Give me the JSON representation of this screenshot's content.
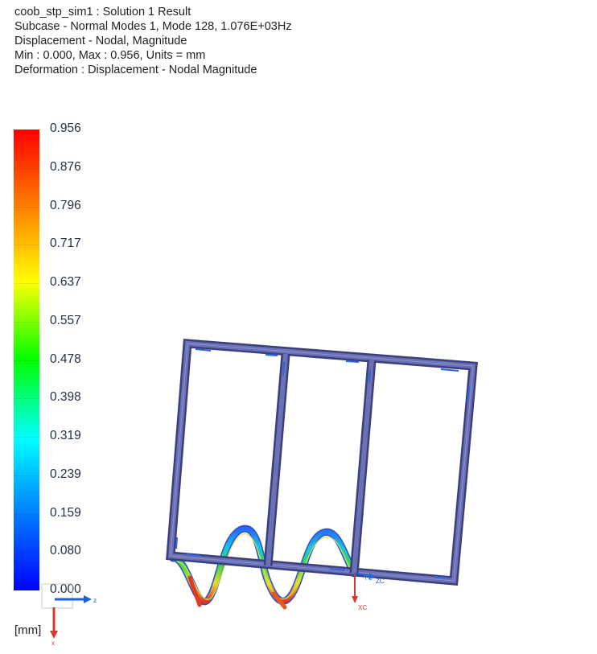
{
  "header": {
    "line1": "coob_stp_sim1 : Solution 1 Result",
    "line2": "Subcase - Normal Modes 1, Mode 128, 1.076E+03Hz",
    "line3": "Displacement - Nodal, Magnitude",
    "line4": "Min : 0.000, Max : 0.956, Units = mm",
    "line5": "Deformation : Displacement - Nodal Magnitude"
  },
  "legend": {
    "labels": [
      "0.956",
      "0.876",
      "0.796",
      "0.717",
      "0.637",
      "0.557",
      "0.478",
      "0.398",
      "0.319",
      "0.239",
      "0.159",
      "0.080",
      "0.000"
    ],
    "units": "[mm]",
    "colors": {
      "max": "#ff0000",
      "mid": "#00ff00",
      "min": "#0000ff"
    }
  },
  "triad_small": {
    "z_label": "z",
    "x_label": "x"
  },
  "triad_model": {
    "yc": "YC",
    "zc": "ZC",
    "xc": "XC"
  },
  "colors": {
    "frame": "#5a5fa0",
    "frame_edge": "#3b3f7c",
    "frame_hi": "#6b71b5",
    "z_axis": "#1f5fd6",
    "x_axis": "#d23b30"
  }
}
